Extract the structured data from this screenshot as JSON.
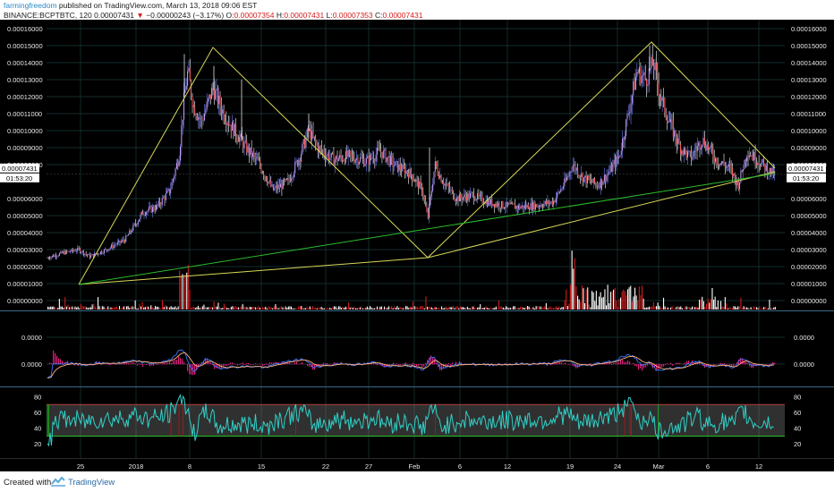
{
  "header": {
    "author": "farmingfreedom",
    "published": "published on TradingView.com, March 13, 2018 09:06 EST",
    "symbol": "BINANCE:BCPTBTC, 120",
    "last": "0.00007431",
    "change": "−0.00000243 (−3.17%)",
    "open_label": "O:",
    "open": "0.00007354",
    "high_label": "H:",
    "high": "0.00007431",
    "low_label": "L:",
    "low": "0.00007353",
    "close_label": "C:",
    "close": "0.00007431"
  },
  "price_axis": {
    "labels": [
      "0.00016000",
      "0.00015000",
      "0.00014000",
      "0.00013000",
      "0.00012000",
      "0.00011000",
      "0.00010000",
      "0.00009000",
      "0.00008000",
      "0.00006000",
      "0.00005000",
      "0.00004000",
      "0.00003000",
      "0.00002000",
      "0.00001000",
      "0.00000000"
    ],
    "current_price": "0.00007431",
    "countdown": "01:53:20"
  },
  "macd_axis": {
    "labels": [
      "0.0000",
      "0.0000"
    ]
  },
  "rsi_axis": {
    "labels": [
      "80",
      "60",
      "40",
      "20"
    ]
  },
  "time_axis": {
    "labels": [
      "25",
      "2018",
      "8",
      "15",
      "22",
      "27",
      "Feb",
      "6",
      "12",
      "19",
      "24",
      "Mar",
      "6",
      "12"
    ]
  },
  "colors": {
    "background": "#000000",
    "grid": "#1c3a3a",
    "triangle": "#d8d85a",
    "trendline": "#2bbd2b",
    "volume_up": "#ffffff",
    "volume_down": "#d01c1c",
    "macd_line": "#3a78ff",
    "signal_line": "#ffb27a",
    "histogram": "#e0207a",
    "rsi_line": "#2fd0c8",
    "rsi_band": "#8a8a8a",
    "rsi_upper": "#c84040",
    "rsi_lower": "#2bdd2b"
  },
  "footer": {
    "created_with": "Created with",
    "brand": "TradingView"
  }
}
